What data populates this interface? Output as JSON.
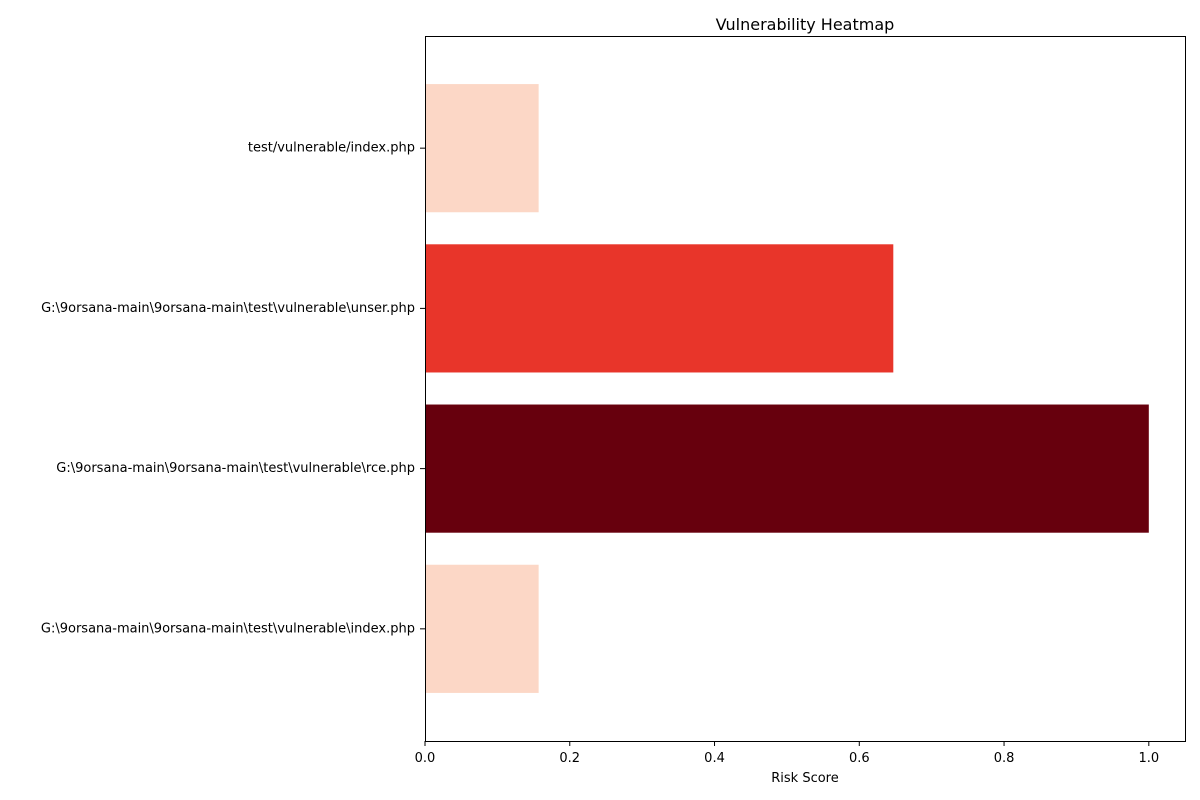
{
  "chart_data": {
    "type": "bar",
    "orientation": "horizontal",
    "title": "Vulnerability Heatmap",
    "xlabel": "Risk Score",
    "ylabel": "",
    "xlim": [
      0,
      1.05
    ],
    "x_ticks": [
      0.0,
      0.2,
      0.4,
      0.6,
      0.8,
      1.0
    ],
    "x_tick_labels": [
      "0.0",
      "0.2",
      "0.4",
      "0.6",
      "0.8",
      "1.0"
    ],
    "grid": false,
    "legend": "none",
    "colormap": "Reds",
    "categories": [
      "test/vulnerable/index.php",
      "G:\\9orsana-main\\9orsana-main\\test\\vulnerable\\unser.php",
      "G:\\9orsana-main\\9orsana-main\\test\\vulnerable\\rce.php",
      "G:\\9orsana-main\\9orsana-main\\test\\vulnerable\\index.php"
    ],
    "values": [
      0.157,
      0.647,
      1.0,
      0.157
    ],
    "colors": [
      "#fcd7c6",
      "#e8352a",
      "#67000d",
      "#fcd7c6"
    ]
  }
}
